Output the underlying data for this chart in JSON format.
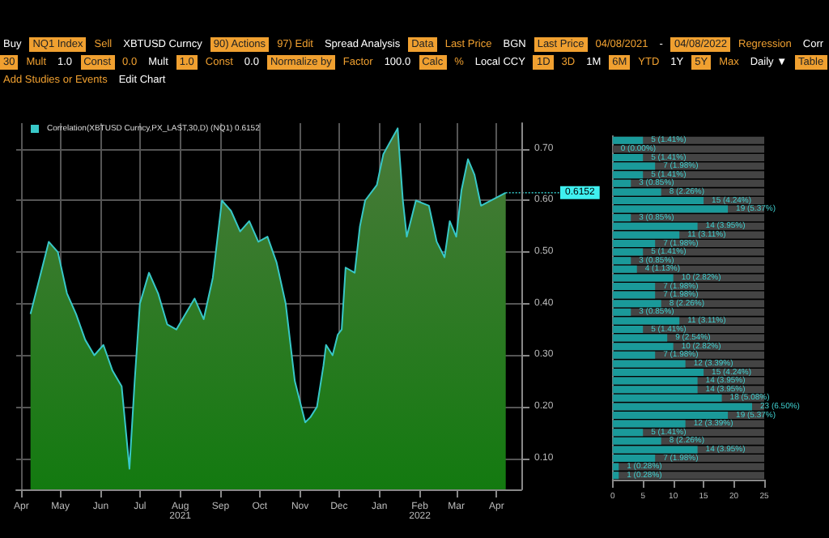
{
  "chart_data": [
    {
      "type": "area",
      "annotations": [
        "Buy",
        "NQ1 Index",
        "Sell",
        "XBTUSD Curncy",
        "90) Actions",
        "97) Edit",
        "Spread Analysis",
        "Data",
        "Last Price",
        "BGN",
        "Last Price",
        "04/08/2021",
        "-",
        "04/08/2022",
        "Regression",
        "Corr",
        "30",
        "Mult",
        "1.0",
        "Const",
        "0.0",
        "Mult",
        "1.0",
        "Const",
        "0.0",
        "Normalize by",
        "Factor",
        "100.0",
        "Calc",
        "%",
        "Local CCY",
        "1D",
        "3D",
        "1M",
        "6M",
        "YTD",
        "1Y",
        "5Y",
        "Max",
        "Daily ▼",
        "Table",
        "Add Studies or Events",
        "Edit Chart",
        {
          "text": "0.6152",
          "x": "2022-04-08",
          "y": 0.6152
        }
      ],
      "series": [
        {
          "name": "Correlation(XBTUSD Curncy,PX_LAST,30,D) (NQ1) 0.6152",
          "color": "#38c8c8",
          "x": [
            "2021-04-08",
            "2021-04-15",
            "2021-04-22",
            "2021-04-29",
            "2021-05-06",
            "2021-05-13",
            "2021-05-20",
            "2021-05-27",
            "2021-06-03",
            "2021-06-10",
            "2021-06-17",
            "2021-06-23",
            "2021-06-27",
            "2021-07-01",
            "2021-07-08",
            "2021-07-15",
            "2021-07-22",
            "2021-07-29",
            "2021-08-05",
            "2021-08-12",
            "2021-08-19",
            "2021-08-26",
            "2021-09-02",
            "2021-09-09",
            "2021-09-16",
            "2021-09-23",
            "2021-09-30",
            "2021-10-07",
            "2021-10-14",
            "2021-10-21",
            "2021-10-28",
            "2021-11-05",
            "2021-11-09",
            "2021-11-14",
            "2021-11-19",
            "2021-11-21",
            "2021-11-26",
            "2021-11-30",
            "2021-12-03",
            "2021-12-06",
            "2021-12-13",
            "2021-12-17",
            "2021-12-21",
            "2021-12-30",
            "2022-01-04",
            "2022-01-15",
            "2022-01-19",
            "2022-01-22",
            "2022-01-29",
            "2022-02-08",
            "2022-02-14",
            "2022-02-20",
            "2022-02-24",
            "2022-03-01",
            "2022-03-05",
            "2022-03-10",
            "2022-03-15",
            "2022-03-20",
            "2022-04-08"
          ],
          "values": [
            0.38,
            0.45,
            0.52,
            0.5,
            0.42,
            0.38,
            0.33,
            0.3,
            0.32,
            0.27,
            0.24,
            0.08,
            0.25,
            0.4,
            0.46,
            0.42,
            0.36,
            0.35,
            0.38,
            0.41,
            0.37,
            0.45,
            0.6,
            0.58,
            0.54,
            0.56,
            0.52,
            0.53,
            0.48,
            0.4,
            0.25,
            0.17,
            0.18,
            0.2,
            0.28,
            0.32,
            0.3,
            0.34,
            0.35,
            0.47,
            0.46,
            0.55,
            0.6,
            0.63,
            0.69,
            0.74,
            0.6,
            0.53,
            0.6,
            0.59,
            0.52,
            0.49,
            0.56,
            0.53,
            0.62,
            0.68,
            0.65,
            0.59,
            0.6152
          ]
        }
      ],
      "xlim": [
        "2021-03-28",
        "2022-04-20"
      ],
      "xticks": [
        {
          "value": "2021-04-01",
          "label": "Apr"
        },
        {
          "value": "2021-05-01",
          "label": "May"
        },
        {
          "value": "2021-06-01",
          "label": "Jun"
        },
        {
          "value": "2021-07-01",
          "label": "Jul"
        },
        {
          "value": "2021-08-01",
          "label": "Aug\n2021"
        },
        {
          "value": "2021-09-01",
          "label": "Sep"
        },
        {
          "value": "2021-10-01",
          "label": "Oct"
        },
        {
          "value": "2021-11-01",
          "label": "Nov"
        },
        {
          "value": "2021-12-01",
          "label": "Dec"
        },
        {
          "value": "2022-01-01",
          "label": "Jan"
        },
        {
          "value": "2022-02-01",
          "label": "Feb\n2022"
        },
        {
          "value": "2022-03-01",
          "label": "Mar"
        },
        {
          "value": "2022-04-01",
          "label": "Apr"
        }
      ],
      "ylim": [
        0.04,
        0.75
      ],
      "yticks": [
        {
          "value": 0.1,
          "label": "0.10"
        },
        {
          "value": 0.2,
          "label": "0.20"
        },
        {
          "value": 0.3,
          "label": "0.30"
        },
        {
          "value": 0.4,
          "label": "0.40"
        },
        {
          "value": 0.5,
          "label": "0.50"
        },
        {
          "value": 0.6,
          "label": "0.60"
        },
        {
          "value": 0.7,
          "label": "0.70"
        }
      ],
      "grid": true,
      "legend": "top left"
    },
    {
      "type": "bar",
      "orientation": "horizontal",
      "color": "#1a9a9a",
      "tick_labels": "x",
      "xlim": [
        0,
        25
      ],
      "xticks": [
        0,
        5,
        10,
        15,
        20,
        25
      ],
      "categories": [
        null,
        null,
        null,
        null,
        null,
        null,
        null,
        null,
        null,
        null,
        null,
        null,
        null,
        null,
        null,
        null,
        null,
        null,
        null,
        null,
        null,
        null,
        null,
        null,
        null,
        null,
        null,
        null,
        null,
        null,
        null,
        null,
        null,
        null,
        null,
        null,
        null,
        null,
        null,
        null
      ],
      "values": [
        5,
        0,
        5,
        7,
        5,
        3,
        8,
        15,
        19,
        3,
        14,
        11,
        7,
        5,
        3,
        4,
        10,
        7,
        7,
        8,
        3,
        11,
        5,
        9,
        10,
        7,
        12,
        15,
        14,
        14,
        18,
        23,
        19,
        12,
        5,
        8,
        14,
        7,
        1,
        1
      ],
      "value_labels": [
        "5 (1.41%)",
        "0 (0.00%)",
        "5 (1.41%)",
        "7 (1.98%)",
        "5 (1.41%)",
        "3 (0.85%)",
        "8 (2.26%)",
        "15 (4.24%)",
        "19 (5.37%)",
        "3 (0.85%)",
        "14 (3.95%)",
        "11 (3.11%)",
        "7 (1.98%)",
        "5 (1.41%)",
        "3 (0.85%)",
        "4 (1.13%)",
        "10 (2.82%)",
        "7 (1.98%)",
        "7 (1.98%)",
        "8 (2.26%)",
        "3 (0.85%)",
        "11 (3.11%)",
        "5 (1.41%)",
        "9 (2.54%)",
        "10 (2.82%)",
        "7 (1.98%)",
        "12 (3.39%)",
        "15 (4.24%)",
        "14 (3.95%)",
        "14 (3.95%)",
        "18 (5.08%)",
        "23 (6.50%)",
        "19 (5.37%)",
        "12 (3.39%)",
        "5 (1.41%)",
        "8 (2.26%)",
        "14 (3.95%)",
        "7 (1.98%)",
        "1 (0.28%)",
        "1 (0.28%)"
      ]
    }
  ]
}
